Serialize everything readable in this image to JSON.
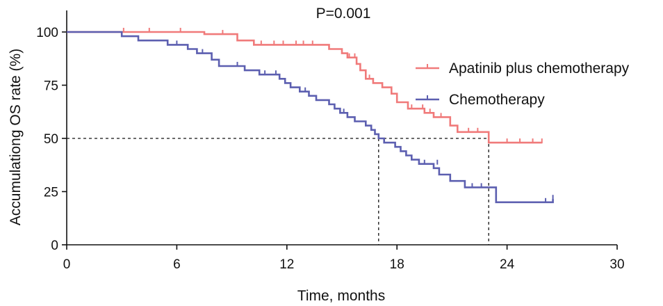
{
  "chart_data": {
    "type": "line",
    "step": true,
    "title": "",
    "annotation": "P=0.001",
    "xlabel": "Time, months",
    "ylabel": "Accumulationg OS rate (%)",
    "xlim": [
      0,
      30
    ],
    "ylim": [
      0,
      100
    ],
    "xticks": [
      0,
      6,
      12,
      18,
      24,
      30
    ],
    "yticks": [
      0,
      25,
      50,
      75,
      100
    ],
    "grid": false,
    "legend_position": "right",
    "median_reference": {
      "y": 50,
      "x": [
        17,
        23
      ]
    },
    "series": [
      {
        "name": "Apatinib plus chemotherapy",
        "color": "#f07a7a",
        "points": [
          [
            0,
            100
          ],
          [
            7.5,
            100
          ],
          [
            7.5,
            99
          ],
          [
            9.3,
            99
          ],
          [
            9.3,
            96
          ],
          [
            10.2,
            96
          ],
          [
            10.2,
            94
          ],
          [
            14.3,
            94
          ],
          [
            14.3,
            92
          ],
          [
            15.0,
            92
          ],
          [
            15.0,
            90
          ],
          [
            15.3,
            90
          ],
          [
            15.3,
            88
          ],
          [
            15.8,
            88
          ],
          [
            15.8,
            85
          ],
          [
            16.0,
            85
          ],
          [
            16.0,
            82
          ],
          [
            16.3,
            82
          ],
          [
            16.3,
            78
          ],
          [
            16.7,
            78
          ],
          [
            16.7,
            76
          ],
          [
            17.2,
            76
          ],
          [
            17.2,
            74
          ],
          [
            17.7,
            74
          ],
          [
            17.7,
            71
          ],
          [
            18.0,
            71
          ],
          [
            18.0,
            67
          ],
          [
            18.6,
            67
          ],
          [
            18.6,
            64
          ],
          [
            19.5,
            64
          ],
          [
            19.5,
            62
          ],
          [
            20.0,
            62
          ],
          [
            20.0,
            60
          ],
          [
            20.9,
            60
          ],
          [
            20.9,
            56
          ],
          [
            21.3,
            56
          ],
          [
            21.3,
            53
          ],
          [
            23.0,
            53
          ],
          [
            23.0,
            48
          ],
          [
            25.9,
            48
          ]
        ],
        "censored": [
          [
            3.1,
            100
          ],
          [
            4.5,
            100
          ],
          [
            6.2,
            100
          ],
          [
            8.5,
            99
          ],
          [
            10.6,
            94
          ],
          [
            11.3,
            94
          ],
          [
            11.8,
            94
          ],
          [
            12.5,
            94
          ],
          [
            12.9,
            94
          ],
          [
            13.4,
            94
          ],
          [
            15.4,
            88
          ],
          [
            15.7,
            88
          ],
          [
            16.5,
            78
          ],
          [
            18.8,
            64
          ],
          [
            19.4,
            64
          ],
          [
            19.8,
            62
          ],
          [
            20.4,
            60
          ],
          [
            21.9,
            53
          ],
          [
            22.4,
            53
          ],
          [
            24.0,
            48
          ],
          [
            24.7,
            48
          ],
          [
            25.4,
            48
          ],
          [
            25.9,
            48
          ]
        ]
      },
      {
        "name": "Chemotherapy",
        "color": "#5c5fb0",
        "points": [
          [
            0,
            100
          ],
          [
            3.0,
            100
          ],
          [
            3.0,
            98
          ],
          [
            3.9,
            98
          ],
          [
            3.9,
            96
          ],
          [
            5.5,
            96
          ],
          [
            5.5,
            94
          ],
          [
            6.6,
            94
          ],
          [
            6.6,
            92
          ],
          [
            7.1,
            92
          ],
          [
            7.1,
            90
          ],
          [
            7.9,
            90
          ],
          [
            7.9,
            87
          ],
          [
            8.3,
            87
          ],
          [
            8.3,
            84
          ],
          [
            9.7,
            84
          ],
          [
            9.7,
            82
          ],
          [
            10.5,
            82
          ],
          [
            10.5,
            80
          ],
          [
            11.6,
            80
          ],
          [
            11.6,
            78
          ],
          [
            11.9,
            78
          ],
          [
            11.9,
            76
          ],
          [
            12.2,
            76
          ],
          [
            12.2,
            74
          ],
          [
            12.7,
            74
          ],
          [
            12.7,
            72
          ],
          [
            13.2,
            72
          ],
          [
            13.2,
            70
          ],
          [
            13.6,
            70
          ],
          [
            13.6,
            68
          ],
          [
            14.3,
            68
          ],
          [
            14.3,
            66
          ],
          [
            14.6,
            66
          ],
          [
            14.6,
            64
          ],
          [
            14.9,
            64
          ],
          [
            14.9,
            62
          ],
          [
            15.3,
            62
          ],
          [
            15.3,
            60
          ],
          [
            15.7,
            60
          ],
          [
            15.7,
            58
          ],
          [
            16.3,
            58
          ],
          [
            16.3,
            56
          ],
          [
            16.6,
            56
          ],
          [
            16.6,
            54
          ],
          [
            16.8,
            54
          ],
          [
            16.8,
            52
          ],
          [
            17.0,
            52
          ],
          [
            17.0,
            50
          ],
          [
            17.3,
            50
          ],
          [
            17.3,
            48
          ],
          [
            17.9,
            48
          ],
          [
            17.9,
            46
          ],
          [
            18.2,
            46
          ],
          [
            18.2,
            44
          ],
          [
            18.5,
            44
          ],
          [
            18.5,
            42
          ],
          [
            18.8,
            42
          ],
          [
            18.8,
            40
          ],
          [
            19.2,
            40
          ],
          [
            19.2,
            38
          ],
          [
            20.0,
            38
          ],
          [
            20.0,
            36
          ],
          [
            20.3,
            36
          ],
          [
            20.3,
            33
          ],
          [
            20.9,
            33
          ],
          [
            20.9,
            30
          ],
          [
            21.7,
            30
          ],
          [
            21.7,
            27
          ],
          [
            23.4,
            27
          ],
          [
            23.4,
            20
          ],
          [
            26.5,
            20
          ],
          [
            26.5,
            21.5
          ]
        ],
        "censored": [
          [
            6.0,
            94
          ],
          [
            7.4,
            90
          ],
          [
            9.3,
            84
          ],
          [
            10.8,
            80
          ],
          [
            11.4,
            80
          ],
          [
            13.0,
            72
          ],
          [
            15.1,
            62
          ],
          [
            19.5,
            38
          ],
          [
            20.2,
            38
          ],
          [
            22.1,
            27
          ],
          [
            22.6,
            27
          ],
          [
            26.1,
            20
          ],
          [
            26.5,
            21.5
          ]
        ]
      }
    ]
  }
}
